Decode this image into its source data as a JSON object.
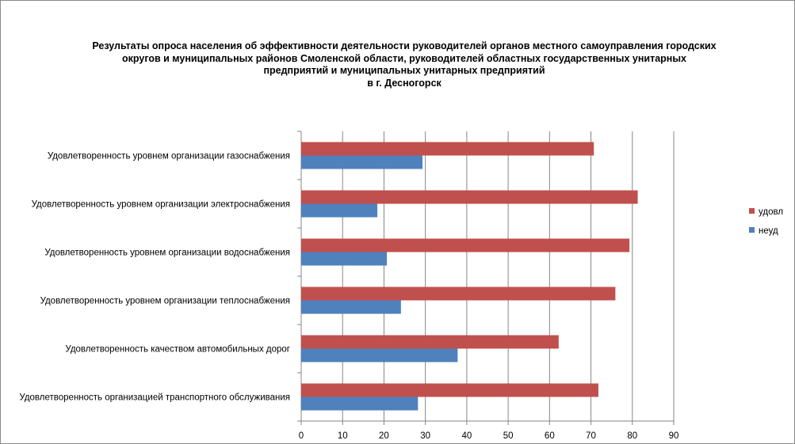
{
  "title_lines": [
    "Результаты опроса населения об эффективности деятельности руководителей органов местного самоуправления городских",
    "округов и муниципальных районов Смоленской области, руководителей областных государственных унитарных",
    "предприятий и муниципальных унитарных предприятий",
    "в г. Десногорск"
  ],
  "colors": {
    "udovl": "#C0504D",
    "neud": "#4F81BD"
  },
  "chart_data": {
    "type": "bar",
    "orientation": "horizontal",
    "title": "Результаты опроса населения об эффективности деятельности руководителей органов местного самоуправления городских округов и муниципальных районов Смоленской области, руководителей областных государственных унитарных предприятий и муниципальных унитарных предприятий в г. Десногорск",
    "categories": [
      "Удовлетворенность  уровнем  организации газоснабжения",
      "Удовлетворенность  уровнем организации электроснабжения",
      "Удовлетворенность  уровнем  организации водоснабжения",
      "Удовлетворенность  уровнем  организации теплоснабжения",
      "Удовлетворенность  качеством  автомобильных дорог",
      "Удовлетворенность  организацией транспортного обслуживания"
    ],
    "series": [
      {
        "name": "удовл",
        "values": [
          70.7,
          81.3,
          79.3,
          75.9,
          62.2,
          71.8
        ]
      },
      {
        "name": "неуд",
        "values": [
          29.3,
          18.4,
          20.7,
          24.1,
          37.8,
          28.2
        ]
      }
    ],
    "xlim": [
      0,
      90
    ],
    "xticks": [
      0,
      10,
      20,
      30,
      40,
      50,
      60,
      70,
      80,
      90
    ],
    "grid": "vertical",
    "legend": "right"
  }
}
